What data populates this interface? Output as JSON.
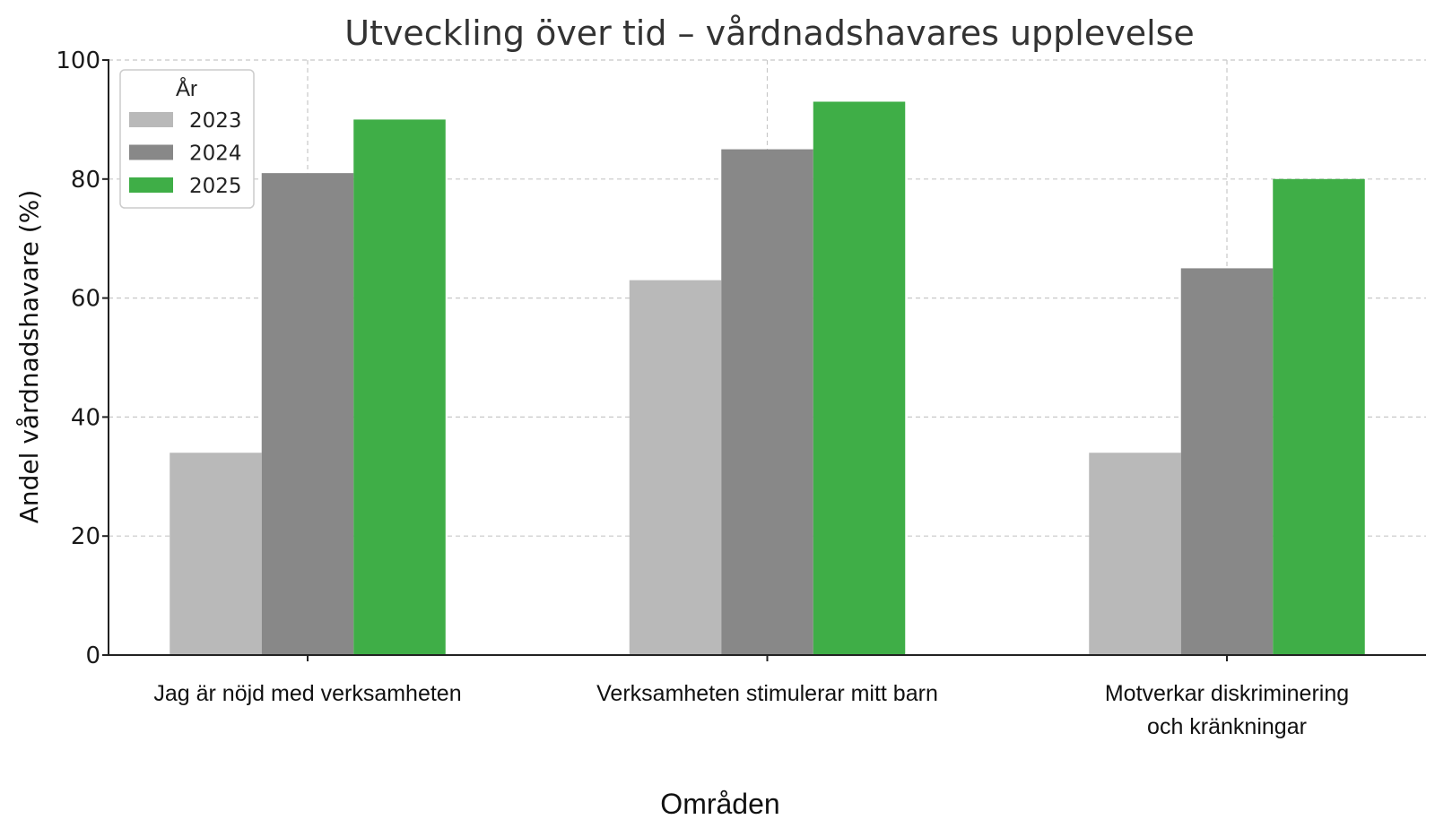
{
  "chart_data": {
    "type": "bar",
    "title": "Utveckling över tid – vårdnadshavares upplevelse",
    "xlabel": "Områden",
    "ylabel": "Andel vårdnadshavare (%)",
    "ylim": [
      0,
      100
    ],
    "yticks": [
      0,
      20,
      40,
      60,
      80,
      100
    ],
    "grid": true,
    "legend": {
      "title": "År",
      "placement": "top-left"
    },
    "categories": [
      [
        "Jag är nöjd med verksamheten"
      ],
      [
        "Verksamheten stimulerar mitt barn"
      ],
      [
        "Motverkar diskriminering",
        "och kränkningar"
      ]
    ],
    "series": [
      {
        "name": "2023",
        "color": "#b9b9b9",
        "values": [
          34,
          63,
          34
        ]
      },
      {
        "name": "2024",
        "color": "#888888",
        "values": [
          81,
          85,
          65
        ]
      },
      {
        "name": "2025",
        "color": "#3fae47",
        "values": [
          90,
          93,
          80
        ]
      }
    ]
  }
}
